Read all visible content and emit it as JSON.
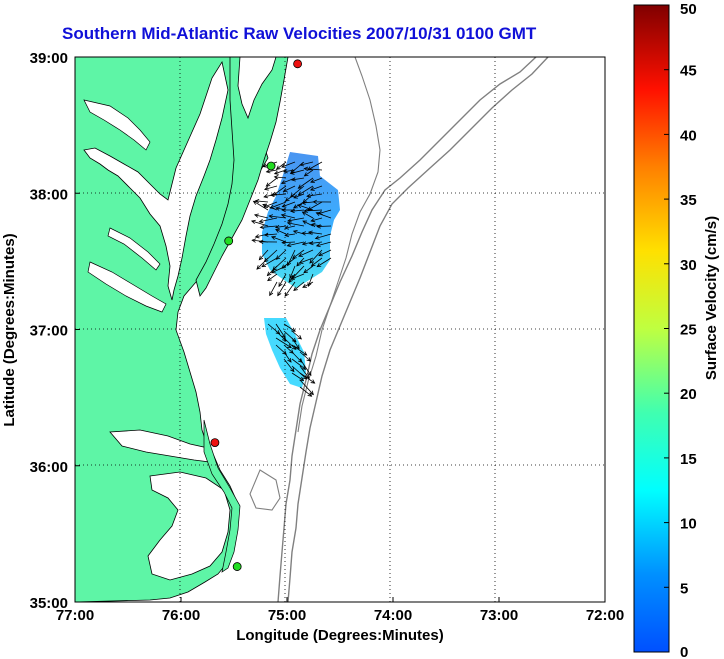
{
  "title": "Southern Mid-Atlantic Raw Velocities 2007/10/31 0100 GMT",
  "axes": {
    "xlabel": "Longitude (Degrees:Minutes)",
    "ylabel": "Latitude (Degrees:Minutes)",
    "x_ticks": [
      "77:00",
      "76:00",
      "75:00",
      "74:00",
      "73:00",
      "72:00"
    ],
    "y_ticks": [
      "39:00",
      "38:00",
      "37:00",
      "36:00",
      "35:00"
    ],
    "x_range_deg_west": [
      77,
      72
    ],
    "y_range_deg_north": [
      35,
      39
    ],
    "grid": "dotted"
  },
  "colorbar": {
    "label": "Surface Velocity (cm/s)",
    "ticks": [
      "50",
      "45",
      "40",
      "35",
      "30",
      "25",
      "20",
      "15",
      "10",
      "5",
      "0"
    ],
    "range_cm_s": [
      0,
      50
    ],
    "colormap": "jet"
  },
  "colors": {
    "land": "#5ef5a6",
    "coastline": "#000000",
    "bathymetry": "#808080",
    "title": "#1010d8",
    "station_green": "#22dd22",
    "station_red": "#ee1111"
  },
  "stations": [
    {
      "lon": 74.9,
      "lat": 38.95,
      "status": "red"
    },
    {
      "lon": 75.68,
      "lat": 36.17,
      "status": "red"
    },
    {
      "lon": 75.15,
      "lat": 38.2,
      "status": "green"
    },
    {
      "lon": 75.55,
      "lat": 37.65,
      "status": "green"
    },
    {
      "lon": 75.47,
      "lat": 35.26,
      "status": "green"
    }
  ],
  "velocity_patches": [
    {
      "lon_range": [
        74.45,
        75.3
      ],
      "lat_range": [
        37.3,
        38.3
      ],
      "speed_cm_s": 9
    },
    {
      "lon_range": [
        74.8,
        75.25
      ],
      "lat_range": [
        36.75,
        37.05
      ],
      "speed_cm_s": 11
    }
  ]
}
